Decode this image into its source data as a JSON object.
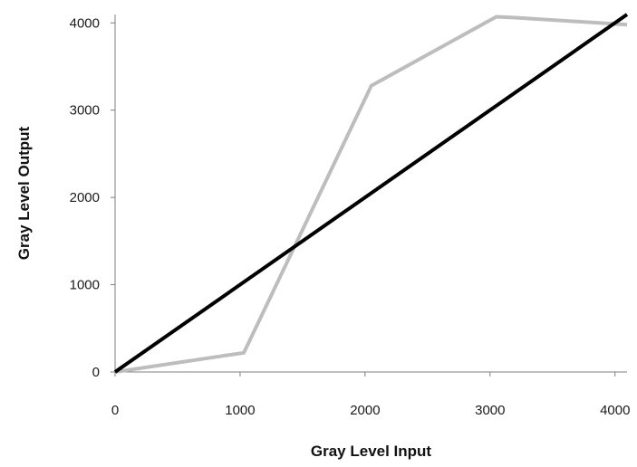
{
  "chart_data": {
    "type": "line",
    "title": "",
    "xlabel": "Gray Level Input",
    "ylabel": "Gray Level Output",
    "xlim": [
      0,
      4096
    ],
    "ylim": [
      0,
      4096
    ],
    "x_ticks": [
      0,
      1000,
      2000,
      3000,
      4000
    ],
    "y_ticks": [
      0,
      1000,
      2000,
      3000,
      4000
    ],
    "x_tick_labels": [
      "0",
      "1000",
      "2000",
      "3000",
      "4000"
    ],
    "y_tick_labels": [
      "0",
      "1000",
      "2000",
      "3000",
      "4000"
    ],
    "grid": false,
    "legend": "none",
    "series": [
      {
        "color": "#bdbdbd",
        "x": [
          0,
          1030,
          2050,
          3050,
          3200,
          4096
        ],
        "y": [
          0,
          220,
          3280,
          4070,
          4060,
          3980
        ]
      },
      {
        "color": "#000000",
        "x": [
          0,
          4096
        ],
        "y": [
          0,
          4096
        ]
      }
    ]
  }
}
